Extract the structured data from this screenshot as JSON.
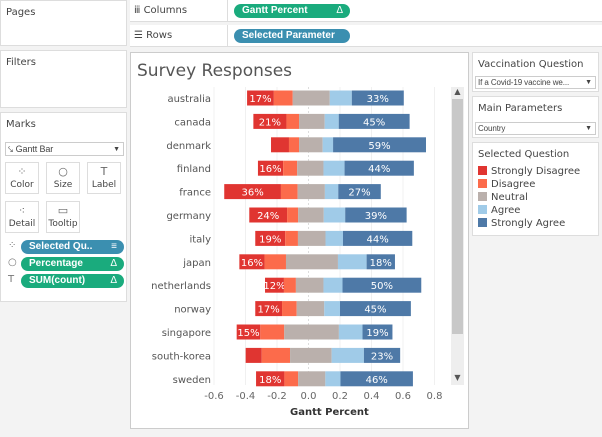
{
  "left": {
    "pages": "Pages",
    "filters": "Filters",
    "marks": "Marks",
    "mark_type": "Gantt Bar",
    "buttons": [
      {
        "label": "Color",
        "icon": "color-dots-icon"
      },
      {
        "label": "Size",
        "icon": "size-icon"
      },
      {
        "label": "Label",
        "icon": "label-icon"
      },
      {
        "label": "Detail",
        "icon": "detail-icon"
      },
      {
        "label": "Tooltip",
        "icon": "tooltip-icon"
      }
    ],
    "pills": [
      {
        "label": "Selected Qu..",
        "suffix": "≡",
        "icon": "color-dots-icon",
        "color": "#3b8fb0"
      },
      {
        "label": "Percentage",
        "suffix": "Δ",
        "icon": "size-icon",
        "color": "#1aab7d"
      },
      {
        "label": "SUM(count)",
        "suffix": "Δ",
        "icon": "label-icon",
        "color": "#1aab7d"
      }
    ]
  },
  "shelves": {
    "columns_label": "Columns",
    "columns_pill": "Gantt Percent",
    "columns_suffix": "Δ",
    "rows_label": "Rows",
    "rows_pill": "Selected Parameter"
  },
  "right": {
    "vacc_title": "Vaccination Question",
    "vacc_value": "If a Covid-19 vaccine we...",
    "param_title": "Main Parameters",
    "param_value": "Country",
    "legend_title": "Selected Question",
    "legend": [
      {
        "label": "Strongly Disagree",
        "color": "#e03531"
      },
      {
        "label": "Disagree",
        "color": "#fc6b4b"
      },
      {
        "label": "Neutral",
        "color": "#bab0ac"
      },
      {
        "label": "Agree",
        "color": "#a0cbe8"
      },
      {
        "label": "Strongly Agree",
        "color": "#4e79a7"
      }
    ]
  },
  "chart_data": {
    "type": "bar",
    "subtype": "diverging stacked gantt",
    "title": "Survey Responses",
    "xlabel": "Gantt Percent",
    "xlim": [
      -0.65,
      0.9
    ],
    "xticks": [
      "-0.6",
      "-0.4",
      "-0.2",
      "0.0",
      "0.2",
      "0.4",
      "0.6",
      "0.8"
    ],
    "xtick_values": [
      -0.6,
      -0.4,
      -0.2,
      0,
      0.2,
      0.4,
      0.6,
      0.8
    ],
    "grid": true,
    "segments": [
      "Strongly Disagree",
      "Disagree",
      "Neutral",
      "Agree",
      "Strongly Agree"
    ],
    "rows": [
      {
        "category": "australia",
        "start": -0.39,
        "values": [
          0.17,
          0.12,
          0.235,
          0.14,
          0.33
        ],
        "sd_label": "17%",
        "sa_label": "33%"
      },
      {
        "category": "canada",
        "start": -0.35,
        "values": [
          0.21,
          0.08,
          0.163,
          0.089,
          0.45
        ],
        "sd_label": "21%",
        "sa_label": "45%"
      },
      {
        "category": "denmark",
        "start": -0.238,
        "values": [
          0.114,
          0.064,
          0.15,
          0.066,
          0.59
        ],
        "sd_label": "",
        "sa_label": "59%"
      },
      {
        "category": "finland",
        "start": -0.321,
        "values": [
          0.16,
          0.089,
          0.167,
          0.134,
          0.44
        ],
        "sd_label": "16%",
        "sa_label": "44%"
      },
      {
        "category": "france",
        "start": -0.535,
        "values": [
          0.36,
          0.106,
          0.173,
          0.085,
          0.27
        ],
        "sd_label": "36%",
        "sa_label": "27%"
      },
      {
        "category": "germany",
        "start": -0.376,
        "values": [
          0.24,
          0.07,
          0.163,
          0.136,
          0.39
        ],
        "sd_label": "24%",
        "sa_label": "39%"
      },
      {
        "category": "italy",
        "start": -0.338,
        "values": [
          0.19,
          0.081,
          0.175,
          0.111,
          0.44
        ],
        "sd_label": "19%",
        "sa_label": "44%"
      },
      {
        "category": "japan",
        "start": -0.439,
        "values": [
          0.16,
          0.136,
          0.33,
          0.182,
          0.18
        ],
        "sd_label": "16%",
        "sa_label": "18%"
      },
      {
        "category": "netherlands",
        "start": -0.276,
        "values": [
          0.12,
          0.076,
          0.175,
          0.121,
          0.5
        ],
        "sd_label": "12%",
        "sa_label": "50%"
      },
      {
        "category": "norway",
        "start": -0.338,
        "values": [
          0.17,
          0.093,
          0.175,
          0.1,
          0.45
        ],
        "sd_label": "17%",
        "sa_label": "45%"
      },
      {
        "category": "singapore",
        "start": -0.456,
        "values": [
          0.15,
          0.152,
          0.347,
          0.15,
          0.19
        ],
        "sd_label": "15%",
        "sa_label": "19%"
      },
      {
        "category": "south-korea",
        "start": -0.399,
        "values": [
          0.102,
          0.18,
          0.264,
          0.205,
          0.23
        ],
        "sd_label": "",
        "sa_label": "23%"
      },
      {
        "category": "sweden",
        "start": -0.333,
        "values": [
          0.18,
          0.087,
          0.173,
          0.096,
          0.46
        ],
        "sd_label": "18%",
        "sa_label": "46%"
      }
    ]
  }
}
